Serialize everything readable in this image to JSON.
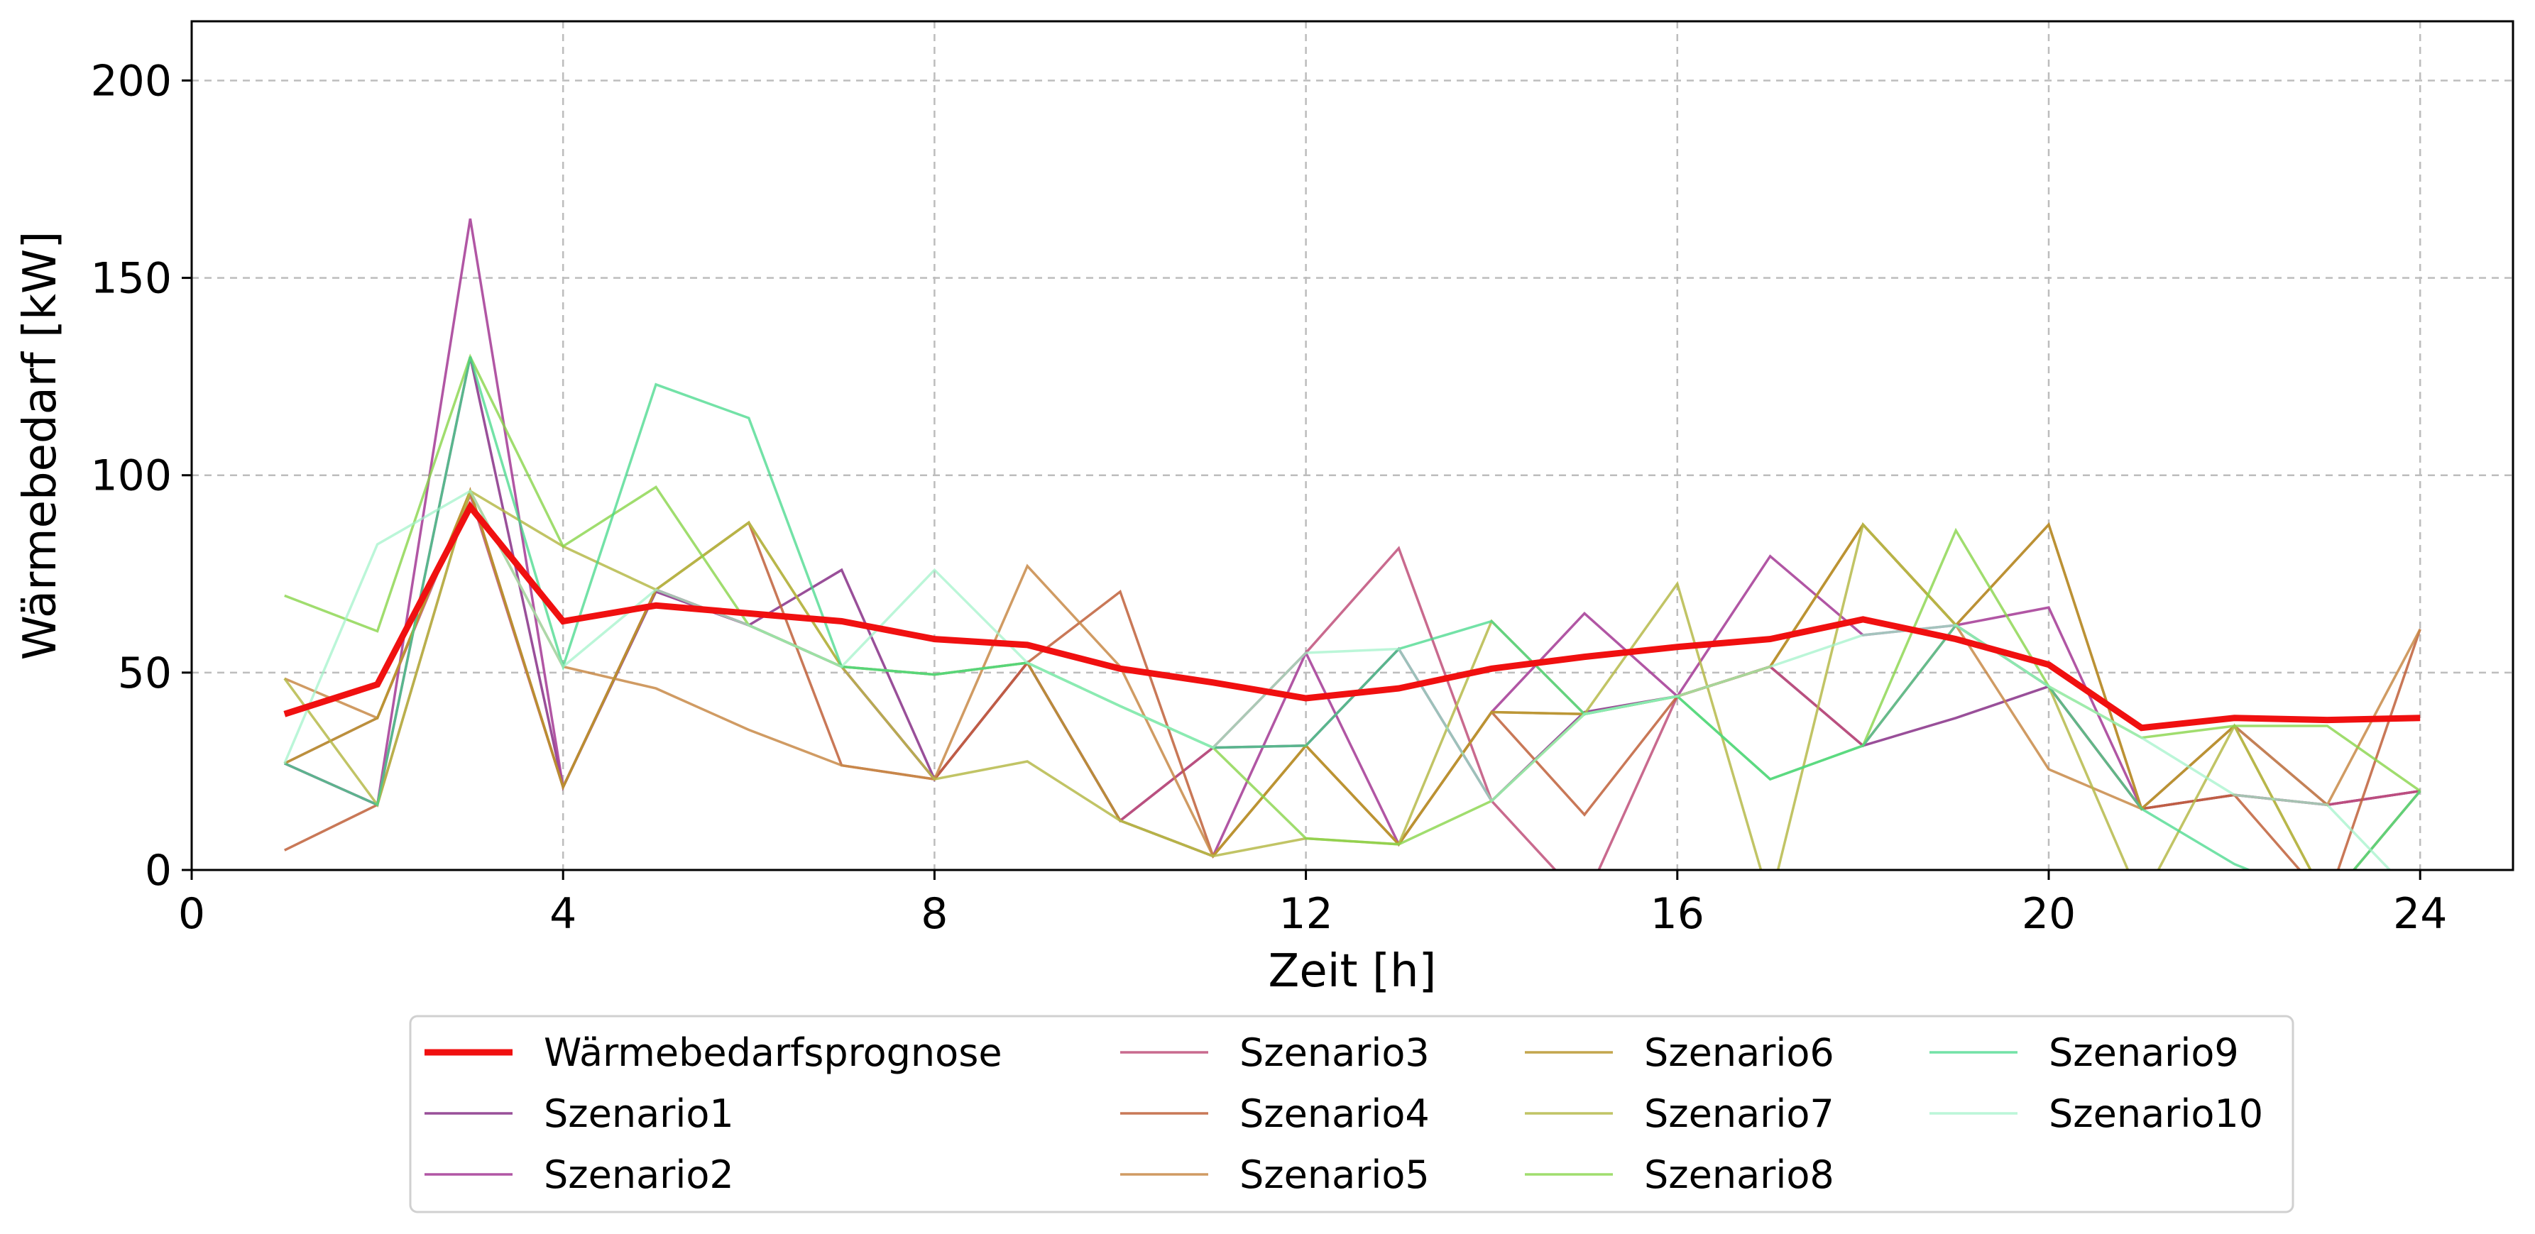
{
  "chart_data": {
    "type": "line",
    "xlabel": "Zeit [h]",
    "ylabel": "Wärmebedarf [kW]",
    "xlim": [
      0,
      25
    ],
    "ylim": [
      0,
      215
    ],
    "xticks": [
      0,
      4,
      8,
      12,
      16,
      20,
      24
    ],
    "yticks": [
      0,
      50,
      100,
      150,
      200
    ],
    "grid": true,
    "legend_position": "bottom-center",
    "x": [
      1,
      2,
      3,
      4,
      5,
      6,
      7,
      8,
      9,
      10,
      11,
      12,
      13,
      14,
      15,
      16,
      17,
      18,
      19,
      20,
      21,
      22,
      23,
      24
    ],
    "series": [
      {
        "name": "Wärmebedarfsprognose",
        "color": "#f01010",
        "width": 9,
        "opacity": 1.0,
        "values": [
          39.5,
          47,
          92,
          63,
          67,
          65,
          63,
          58.5,
          57,
          51,
          47.5,
          43.5,
          46,
          51,
          54,
          56.5,
          58.5,
          63.5,
          58.5,
          52,
          36,
          38.5,
          38,
          38.5
        ]
      },
      {
        "name": "Szenario1",
        "color": "#8e3c8e",
        "width": 3.5,
        "opacity": 0.9,
        "values": [
          27,
          16.5,
          130,
          21,
          70.5,
          62,
          76,
          23,
          52.5,
          12.5,
          31,
          31.5,
          56,
          17.5,
          40,
          44,
          51.5,
          31.5,
          38.5,
          46.5,
          15.5,
          19,
          16.5,
          20
        ]
      },
      {
        "name": "Szenario2",
        "color": "#a8449a",
        "width": 3.5,
        "opacity": 0.9,
        "values": [
          27,
          16.5,
          165,
          21,
          71,
          62,
          51.5,
          23,
          52.5,
          12.5,
          3.5,
          55,
          6.5,
          40,
          65,
          44,
          79.5,
          59.5,
          62,
          66.5,
          15.5,
          36.5,
          16.5,
          20
        ]
      },
      {
        "name": "Szenario3",
        "color": "#c0507a",
        "width": 3.5,
        "opacity": 0.85,
        "values": [
          27,
          38.5,
          95,
          21,
          71,
          62,
          51.5,
          23,
          52.5,
          12.5,
          31,
          55,
          81.5,
          17.5,
          -8,
          44,
          51.5,
          31.5,
          62,
          46.5,
          15.5,
          19,
          16.5,
          20
        ]
      },
      {
        "name": "Szenario4",
        "color": "#c0603a",
        "width": 3.5,
        "opacity": 0.85,
        "values": [
          5,
          16.5,
          96,
          21,
          71,
          88,
          26.5,
          23,
          52.5,
          70.5,
          3.5,
          31.5,
          6.5,
          40,
          14,
          44,
          51.5,
          87.5,
          62,
          87.5,
          15.5,
          19,
          -8,
          61
        ]
      },
      {
        "name": "Szenario5",
        "color": "#c88a48",
        "width": 3.5,
        "opacity": 0.85,
        "values": [
          48.5,
          38.5,
          96,
          51.5,
          46,
          35.5,
          26.5,
          23,
          77,
          51.5,
          3.5,
          31.5,
          6.5,
          40,
          39.5,
          44,
          51.5,
          87.5,
          62,
          25.5,
          15.5,
          36.5,
          16.5,
          61
        ]
      },
      {
        "name": "Szenario6",
        "color": "#b8962e",
        "width": 3.5,
        "opacity": 0.85,
        "values": [
          27,
          38.5,
          96,
          21,
          71,
          88,
          51.5,
          49.5,
          52.5,
          12.5,
          3.5,
          31.5,
          6.5,
          40,
          39.5,
          44,
          51.5,
          87.5,
          62,
          87.5,
          15.5,
          36.5,
          -8,
          20
        ]
      },
      {
        "name": "Szenario7",
        "color": "#b6ba4a",
        "width": 3.5,
        "opacity": 0.85,
        "values": [
          48.5,
          16.5,
          96,
          82,
          71,
          88,
          51.5,
          23,
          27.5,
          12.5,
          3.5,
          8,
          6.5,
          63,
          39.5,
          72.5,
          -8,
          87.5,
          62,
          46.5,
          -8,
          36.5,
          -8,
          20
        ]
      },
      {
        "name": "Szenario8",
        "color": "#88d44a",
        "width": 3.5,
        "opacity": 0.8,
        "values": [
          69.5,
          60.5,
          130,
          82,
          97,
          62,
          51.5,
          49.5,
          52.5,
          41.5,
          31,
          8,
          6.5,
          17.5,
          39.5,
          44,
          23,
          31.5,
          86,
          46.5,
          33.5,
          36.5,
          36.5,
          20
        ]
      },
      {
        "name": "Szenario9",
        "color": "#44d88a",
        "width": 3.5,
        "opacity": 0.75,
        "values": [
          27,
          16.5,
          130,
          51.5,
          123,
          114.5,
          51.5,
          49.5,
          52.5,
          41.5,
          31,
          31.5,
          56,
          63,
          39.5,
          44,
          23,
          31.5,
          62,
          46.5,
          15.5,
          1.5,
          -8,
          20
        ]
      },
      {
        "name": "Szenario10",
        "color": "#9ef2c8",
        "width": 3.5,
        "opacity": 0.7,
        "values": [
          27,
          82.5,
          96,
          51.5,
          71,
          62,
          51.5,
          76,
          52.5,
          41.5,
          31,
          55,
          56,
          17.5,
          39.5,
          44,
          51.5,
          59.5,
          62,
          46.5,
          33.5,
          19,
          16.5,
          -8
        ]
      }
    ]
  }
}
